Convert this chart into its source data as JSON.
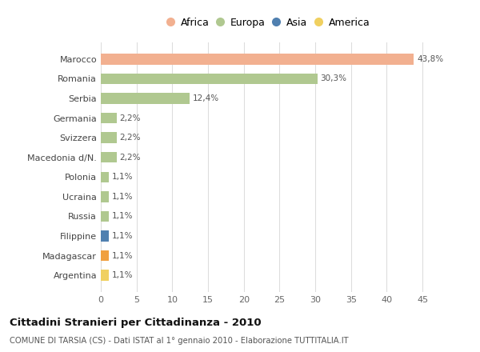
{
  "categories": [
    "Marocco",
    "Romania",
    "Serbia",
    "Germania",
    "Svizzera",
    "Macedonia d/N.",
    "Polonia",
    "Ucraina",
    "Russia",
    "Filippine",
    "Madagascar",
    "Argentina"
  ],
  "values": [
    43.8,
    30.3,
    12.4,
    2.2,
    2.2,
    2.2,
    1.1,
    1.1,
    1.1,
    1.1,
    1.1,
    1.1
  ],
  "labels": [
    "43,8%",
    "30,3%",
    "12,4%",
    "2,2%",
    "2,2%",
    "2,2%",
    "1,1%",
    "1,1%",
    "1,1%",
    "1,1%",
    "1,1%",
    "1,1%"
  ],
  "colors": [
    "#F2B090",
    "#B0C890",
    "#B0C890",
    "#B0C890",
    "#B0C890",
    "#B0C890",
    "#B0C890",
    "#B0C890",
    "#B0C890",
    "#5080B0",
    "#F0A040",
    "#F0D060"
  ],
  "legend_labels": [
    "Africa",
    "Europa",
    "Asia",
    "America"
  ],
  "legend_colors": [
    "#F2B090",
    "#B0C890",
    "#5080B0",
    "#F0D060"
  ],
  "xlim": [
    0,
    47
  ],
  "xticks": [
    0,
    5,
    10,
    15,
    20,
    25,
    30,
    35,
    40,
    45
  ],
  "title": "Cittadini Stranieri per Cittadinanza - 2010",
  "subtitle": "COMUNE DI TARSIA (CS) - Dati ISTAT al 1° gennaio 2010 - Elaborazione TUTTITALIA.IT",
  "bg_color": "#ffffff",
  "grid_color": "#dddddd",
  "bar_height": 0.55
}
